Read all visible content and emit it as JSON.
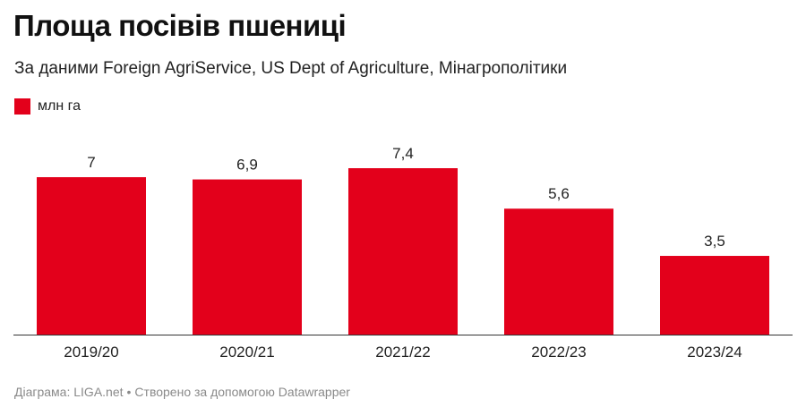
{
  "chart_data": {
    "type": "bar",
    "title": "Площа посівів пшениці",
    "subtitle": "За даними Foreign AgriService, US Dept of Agriculture, Мінагрополітики",
    "legend": [
      {
        "name": "млн га",
        "color": "#e3001b"
      }
    ],
    "categories": [
      "2019/20",
      "2020/21",
      "2021/22",
      "2022/23",
      "2023/24"
    ],
    "series": [
      {
        "name": "млн га",
        "values": [
          7,
          6.9,
          7.4,
          5.6,
          3.5
        ]
      }
    ],
    "value_labels": [
      "7",
      "6,9",
      "7,4",
      "5,6",
      "3,5"
    ],
    "ylim": [
      0,
      7.4
    ],
    "grid": false,
    "legend_position": "top-left"
  },
  "footer": {
    "source": "Діаграма: LIGA.net",
    "separator": "•",
    "credit": "Створено за допомогою Datawrapper"
  }
}
